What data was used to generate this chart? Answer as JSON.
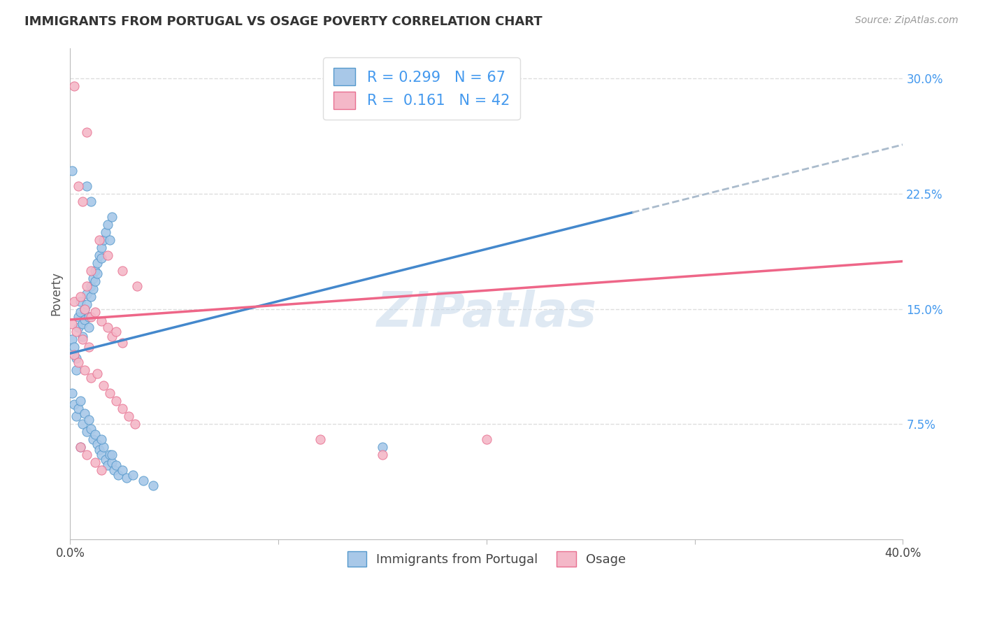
{
  "title": "IMMIGRANTS FROM PORTUGAL VS OSAGE POVERTY CORRELATION CHART",
  "source": "Source: ZipAtlas.com",
  "ylabel": "Poverty",
  "xlim": [
    0.0,
    0.4
  ],
  "ylim": [
    0.0,
    0.32
  ],
  "xticks": [
    0.0,
    0.1,
    0.2,
    0.3,
    0.4
  ],
  "yticks_right": [
    0.0,
    0.075,
    0.15,
    0.225,
    0.3
  ],
  "blue_color": "#a8c8e8",
  "pink_color": "#f4b8c8",
  "blue_edge_color": "#5599cc",
  "pink_edge_color": "#e87090",
  "blue_line_color": "#4488cc",
  "pink_line_color": "#ee6688",
  "blue_scatter": [
    [
      0.001,
      0.13
    ],
    [
      0.002,
      0.125
    ],
    [
      0.003,
      0.118
    ],
    [
      0.003,
      0.11
    ],
    [
      0.004,
      0.145
    ],
    [
      0.004,
      0.138
    ],
    [
      0.005,
      0.155
    ],
    [
      0.005,
      0.148
    ],
    [
      0.006,
      0.14
    ],
    [
      0.006,
      0.132
    ],
    [
      0.007,
      0.15
    ],
    [
      0.007,
      0.143
    ],
    [
      0.008,
      0.16
    ],
    [
      0.008,
      0.153
    ],
    [
      0.009,
      0.145
    ],
    [
      0.009,
      0.138
    ],
    [
      0.01,
      0.165
    ],
    [
      0.01,
      0.158
    ],
    [
      0.011,
      0.17
    ],
    [
      0.011,
      0.163
    ],
    [
      0.012,
      0.175
    ],
    [
      0.012,
      0.168
    ],
    [
      0.013,
      0.18
    ],
    [
      0.013,
      0.173
    ],
    [
      0.014,
      0.185
    ],
    [
      0.015,
      0.19
    ],
    [
      0.015,
      0.183
    ],
    [
      0.016,
      0.195
    ],
    [
      0.017,
      0.2
    ],
    [
      0.018,
      0.205
    ],
    [
      0.019,
      0.195
    ],
    [
      0.02,
      0.21
    ],
    [
      0.001,
      0.095
    ],
    [
      0.002,
      0.088
    ],
    [
      0.003,
      0.08
    ],
    [
      0.004,
      0.085
    ],
    [
      0.005,
      0.09
    ],
    [
      0.006,
      0.075
    ],
    [
      0.007,
      0.082
    ],
    [
      0.008,
      0.07
    ],
    [
      0.009,
      0.078
    ],
    [
      0.01,
      0.072
    ],
    [
      0.011,
      0.065
    ],
    [
      0.012,
      0.068
    ],
    [
      0.013,
      0.062
    ],
    [
      0.014,
      0.058
    ],
    [
      0.015,
      0.055
    ],
    [
      0.016,
      0.06
    ],
    [
      0.017,
      0.052
    ],
    [
      0.018,
      0.048
    ],
    [
      0.019,
      0.055
    ],
    [
      0.02,
      0.05
    ],
    [
      0.021,
      0.045
    ],
    [
      0.022,
      0.048
    ],
    [
      0.023,
      0.042
    ],
    [
      0.025,
      0.045
    ],
    [
      0.027,
      0.04
    ],
    [
      0.03,
      0.042
    ],
    [
      0.035,
      0.038
    ],
    [
      0.04,
      0.035
    ],
    [
      0.001,
      0.24
    ],
    [
      0.008,
      0.23
    ],
    [
      0.01,
      0.22
    ],
    [
      0.005,
      0.06
    ],
    [
      0.015,
      0.065
    ],
    [
      0.02,
      0.055
    ],
    [
      0.15,
      0.06
    ]
  ],
  "pink_scatter": [
    [
      0.002,
      0.295
    ],
    [
      0.008,
      0.265
    ],
    [
      0.004,
      0.23
    ],
    [
      0.006,
      0.22
    ],
    [
      0.014,
      0.195
    ],
    [
      0.018,
      0.185
    ],
    [
      0.025,
      0.175
    ],
    [
      0.032,
      0.165
    ],
    [
      0.01,
      0.175
    ],
    [
      0.008,
      0.165
    ],
    [
      0.002,
      0.155
    ],
    [
      0.005,
      0.158
    ],
    [
      0.007,
      0.15
    ],
    [
      0.01,
      0.145
    ],
    [
      0.012,
      0.148
    ],
    [
      0.015,
      0.142
    ],
    [
      0.018,
      0.138
    ],
    [
      0.02,
      0.132
    ],
    [
      0.022,
      0.135
    ],
    [
      0.025,
      0.128
    ],
    [
      0.001,
      0.14
    ],
    [
      0.003,
      0.135
    ],
    [
      0.006,
      0.13
    ],
    [
      0.009,
      0.125
    ],
    [
      0.002,
      0.12
    ],
    [
      0.004,
      0.115
    ],
    [
      0.007,
      0.11
    ],
    [
      0.01,
      0.105
    ],
    [
      0.013,
      0.108
    ],
    [
      0.016,
      0.1
    ],
    [
      0.019,
      0.095
    ],
    [
      0.022,
      0.09
    ],
    [
      0.025,
      0.085
    ],
    [
      0.028,
      0.08
    ],
    [
      0.031,
      0.075
    ],
    [
      0.005,
      0.06
    ],
    [
      0.008,
      0.055
    ],
    [
      0.012,
      0.05
    ],
    [
      0.015,
      0.045
    ],
    [
      0.2,
      0.065
    ],
    [
      0.15,
      0.055
    ],
    [
      0.12,
      0.065
    ]
  ],
  "background_color": "#ffffff",
  "grid_color": "#dddddd",
  "watermark": "ZIPatlas",
  "watermark_color": "#c5d8ea"
}
